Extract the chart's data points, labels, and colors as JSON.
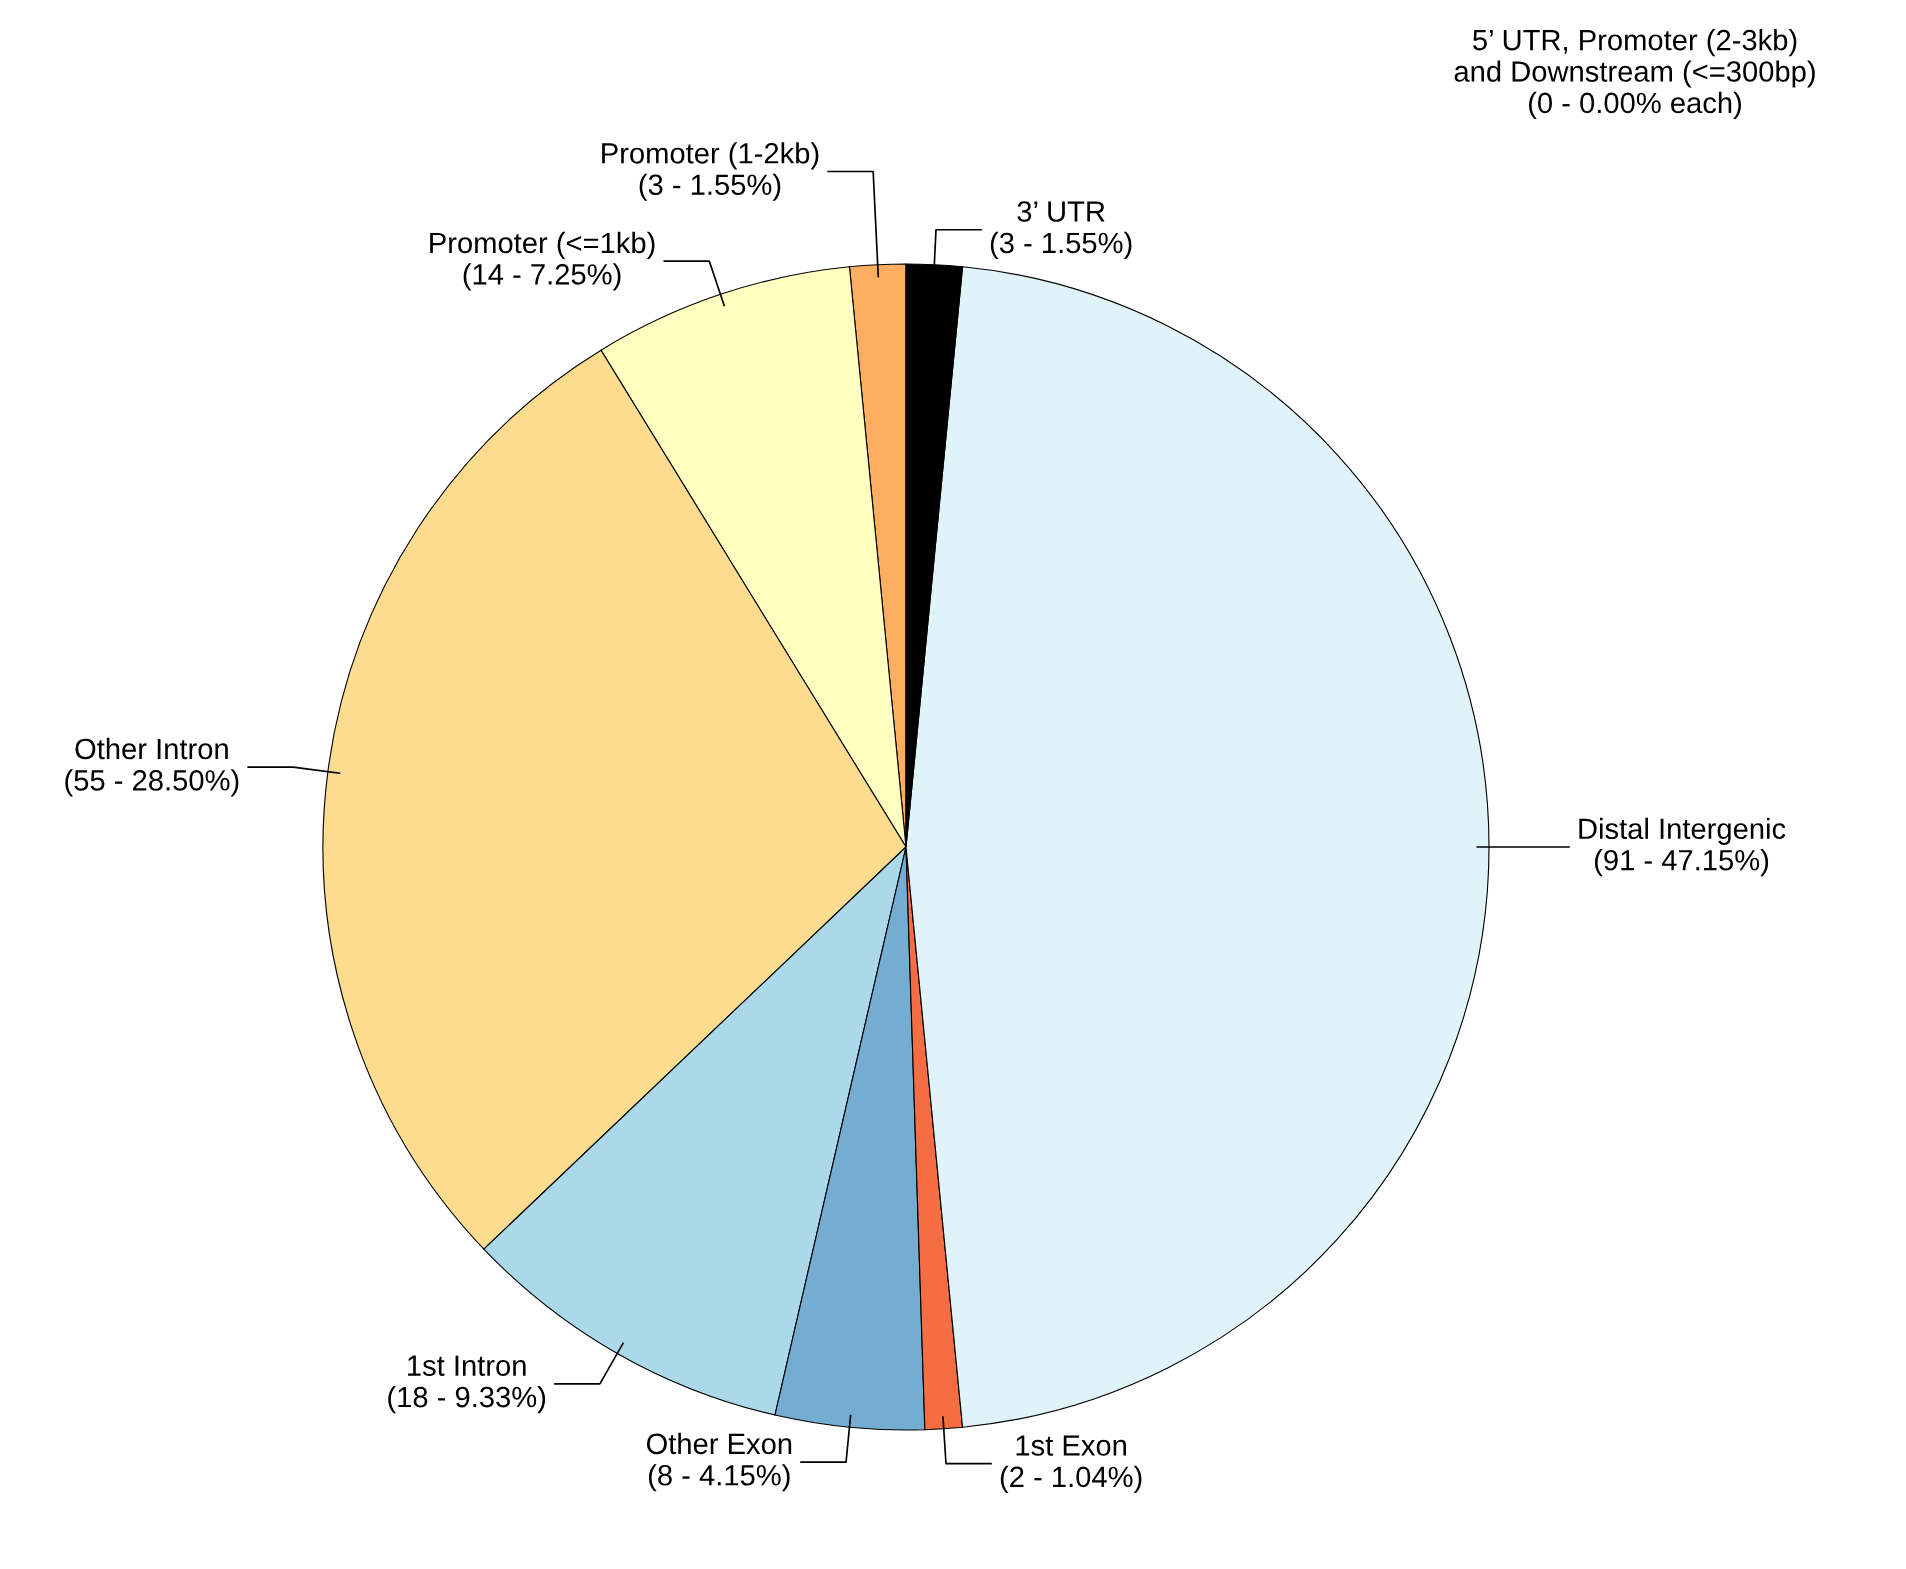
{
  "chart_data": {
    "type": "pie",
    "categories": [
      "Promoter (1-2kb)",
      "Promoter (<=1kb)",
      "Other Intron",
      "1st Intron",
      "Other Exon",
      "1st Exon",
      "Distal Intergenic",
      "3’ UTR"
    ],
    "values": [
      3,
      14,
      55,
      18,
      8,
      2,
      91,
      3
    ],
    "value_labels": [
      "(3 - 1.55%)",
      "(14 - 7.25%)",
      "(55 - 28.50%)",
      "(18 - 9.33%)",
      "(8 - 4.15%)",
      "(2 - 1.04%)",
      "(91 - 47.15%)",
      "(3 - 1.55%)"
    ],
    "colors": [
      "#fdae61",
      "#ffffbf",
      "#fddc8f",
      "#abd9e9",
      "#74add1",
      "#f46d43",
      "#e0f3f8",
      "#000000"
    ],
    "annotations": [
      "5’ UTR, Promoter (2-3kb)\nand Downstream (<=300bp)\n(0 - 0.00% each)"
    ]
  }
}
